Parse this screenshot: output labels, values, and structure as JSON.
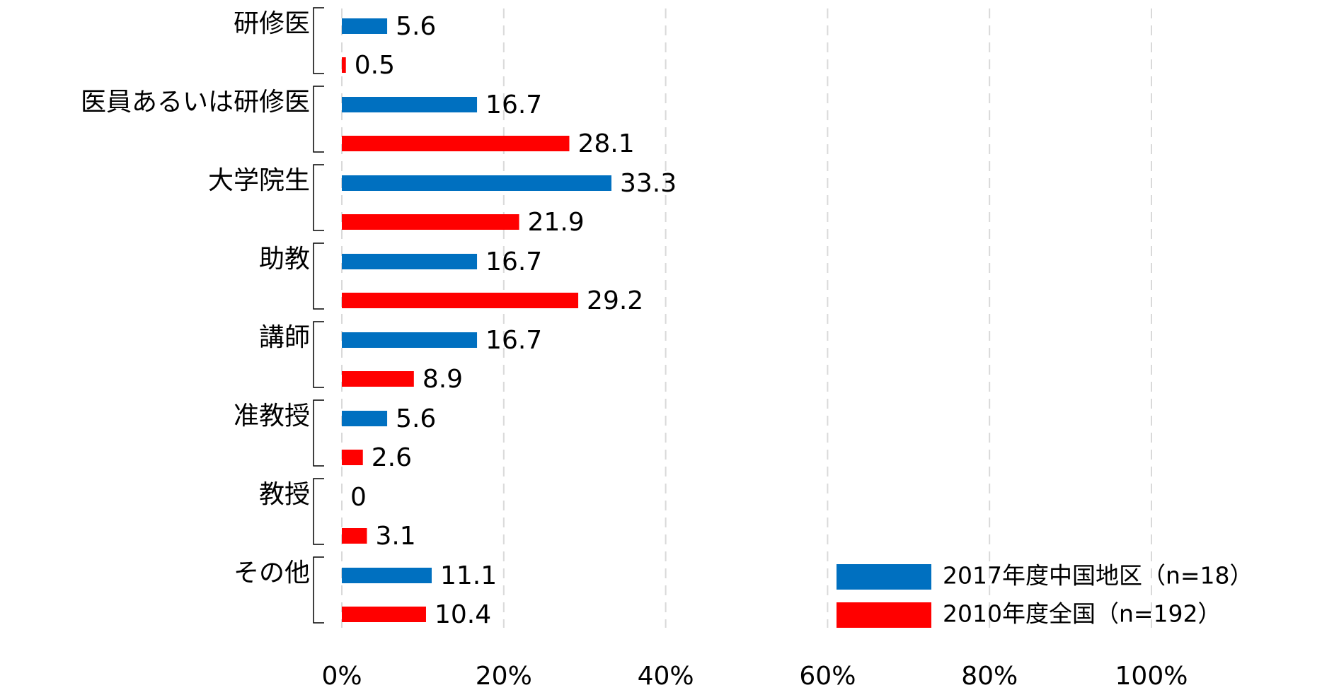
{
  "chart_data": {
    "type": "bar",
    "orientation": "horizontal",
    "categories": [
      "研修医",
      "医員あるいは研修医",
      "大学院生",
      "助教",
      "講師",
      "准教授",
      "教授",
      "その他"
    ],
    "series": [
      {
        "name": "2017年度中国地区（n=18）",
        "color": "#0070c0",
        "values": [
          5.6,
          16.7,
          33.3,
          16.7,
          16.7,
          5.6,
          0,
          11.1
        ]
      },
      {
        "name": "2010年度全国（n=192）",
        "color": "#ff0000",
        "values": [
          0.5,
          28.1,
          21.9,
          29.2,
          8.9,
          2.6,
          3.1,
          10.4
        ]
      }
    ],
    "xlim": [
      0,
      100
    ],
    "xticks": [
      {
        "value": 0,
        "label": "0%"
      },
      {
        "value": 20,
        "label": "20%"
      },
      {
        "value": 40,
        "label": "40%"
      },
      {
        "value": 60,
        "label": "60%"
      },
      {
        "value": 80,
        "label": "80%"
      },
      {
        "value": 100,
        "label": "100%"
      }
    ],
    "grid": true,
    "legend": "lower right"
  }
}
